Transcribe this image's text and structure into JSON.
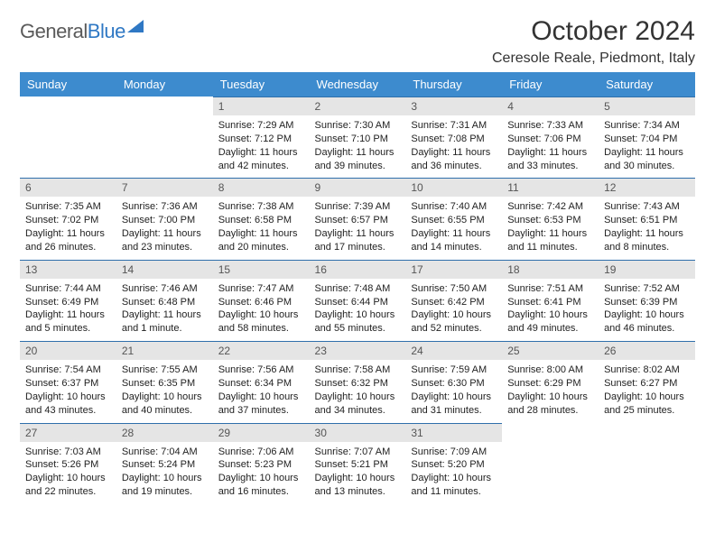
{
  "logo": {
    "text_gray": "General",
    "text_blue": "Blue"
  },
  "header": {
    "month_title": "October 2024",
    "location": "Ceresole Reale, Piedmont, Italy"
  },
  "colors": {
    "header_bg": "#3d8bce",
    "header_text": "#ffffff",
    "daynum_bg": "#e5e5e5",
    "daynum_border": "#2f6fab",
    "logo_gray": "#5a5a5a",
    "logo_blue": "#2f78c4",
    "body_text": "#222222",
    "page_bg": "#ffffff"
  },
  "weekdays": [
    "Sunday",
    "Monday",
    "Tuesday",
    "Wednesday",
    "Thursday",
    "Friday",
    "Saturday"
  ],
  "weeks": [
    [
      {
        "day": "",
        "sunrise": "",
        "sunset": "",
        "daylight": ""
      },
      {
        "day": "",
        "sunrise": "",
        "sunset": "",
        "daylight": ""
      },
      {
        "day": "1",
        "sunrise": "Sunrise: 7:29 AM",
        "sunset": "Sunset: 7:12 PM",
        "daylight": "Daylight: 11 hours and 42 minutes."
      },
      {
        "day": "2",
        "sunrise": "Sunrise: 7:30 AM",
        "sunset": "Sunset: 7:10 PM",
        "daylight": "Daylight: 11 hours and 39 minutes."
      },
      {
        "day": "3",
        "sunrise": "Sunrise: 7:31 AM",
        "sunset": "Sunset: 7:08 PM",
        "daylight": "Daylight: 11 hours and 36 minutes."
      },
      {
        "day": "4",
        "sunrise": "Sunrise: 7:33 AM",
        "sunset": "Sunset: 7:06 PM",
        "daylight": "Daylight: 11 hours and 33 minutes."
      },
      {
        "day": "5",
        "sunrise": "Sunrise: 7:34 AM",
        "sunset": "Sunset: 7:04 PM",
        "daylight": "Daylight: 11 hours and 30 minutes."
      }
    ],
    [
      {
        "day": "6",
        "sunrise": "Sunrise: 7:35 AM",
        "sunset": "Sunset: 7:02 PM",
        "daylight": "Daylight: 11 hours and 26 minutes."
      },
      {
        "day": "7",
        "sunrise": "Sunrise: 7:36 AM",
        "sunset": "Sunset: 7:00 PM",
        "daylight": "Daylight: 11 hours and 23 minutes."
      },
      {
        "day": "8",
        "sunrise": "Sunrise: 7:38 AM",
        "sunset": "Sunset: 6:58 PM",
        "daylight": "Daylight: 11 hours and 20 minutes."
      },
      {
        "day": "9",
        "sunrise": "Sunrise: 7:39 AM",
        "sunset": "Sunset: 6:57 PM",
        "daylight": "Daylight: 11 hours and 17 minutes."
      },
      {
        "day": "10",
        "sunrise": "Sunrise: 7:40 AM",
        "sunset": "Sunset: 6:55 PM",
        "daylight": "Daylight: 11 hours and 14 minutes."
      },
      {
        "day": "11",
        "sunrise": "Sunrise: 7:42 AM",
        "sunset": "Sunset: 6:53 PM",
        "daylight": "Daylight: 11 hours and 11 minutes."
      },
      {
        "day": "12",
        "sunrise": "Sunrise: 7:43 AM",
        "sunset": "Sunset: 6:51 PM",
        "daylight": "Daylight: 11 hours and 8 minutes."
      }
    ],
    [
      {
        "day": "13",
        "sunrise": "Sunrise: 7:44 AM",
        "sunset": "Sunset: 6:49 PM",
        "daylight": "Daylight: 11 hours and 5 minutes."
      },
      {
        "day": "14",
        "sunrise": "Sunrise: 7:46 AM",
        "sunset": "Sunset: 6:48 PM",
        "daylight": "Daylight: 11 hours and 1 minute."
      },
      {
        "day": "15",
        "sunrise": "Sunrise: 7:47 AM",
        "sunset": "Sunset: 6:46 PM",
        "daylight": "Daylight: 10 hours and 58 minutes."
      },
      {
        "day": "16",
        "sunrise": "Sunrise: 7:48 AM",
        "sunset": "Sunset: 6:44 PM",
        "daylight": "Daylight: 10 hours and 55 minutes."
      },
      {
        "day": "17",
        "sunrise": "Sunrise: 7:50 AM",
        "sunset": "Sunset: 6:42 PM",
        "daylight": "Daylight: 10 hours and 52 minutes."
      },
      {
        "day": "18",
        "sunrise": "Sunrise: 7:51 AM",
        "sunset": "Sunset: 6:41 PM",
        "daylight": "Daylight: 10 hours and 49 minutes."
      },
      {
        "day": "19",
        "sunrise": "Sunrise: 7:52 AM",
        "sunset": "Sunset: 6:39 PM",
        "daylight": "Daylight: 10 hours and 46 minutes."
      }
    ],
    [
      {
        "day": "20",
        "sunrise": "Sunrise: 7:54 AM",
        "sunset": "Sunset: 6:37 PM",
        "daylight": "Daylight: 10 hours and 43 minutes."
      },
      {
        "day": "21",
        "sunrise": "Sunrise: 7:55 AM",
        "sunset": "Sunset: 6:35 PM",
        "daylight": "Daylight: 10 hours and 40 minutes."
      },
      {
        "day": "22",
        "sunrise": "Sunrise: 7:56 AM",
        "sunset": "Sunset: 6:34 PM",
        "daylight": "Daylight: 10 hours and 37 minutes."
      },
      {
        "day": "23",
        "sunrise": "Sunrise: 7:58 AM",
        "sunset": "Sunset: 6:32 PM",
        "daylight": "Daylight: 10 hours and 34 minutes."
      },
      {
        "day": "24",
        "sunrise": "Sunrise: 7:59 AM",
        "sunset": "Sunset: 6:30 PM",
        "daylight": "Daylight: 10 hours and 31 minutes."
      },
      {
        "day": "25",
        "sunrise": "Sunrise: 8:00 AM",
        "sunset": "Sunset: 6:29 PM",
        "daylight": "Daylight: 10 hours and 28 minutes."
      },
      {
        "day": "26",
        "sunrise": "Sunrise: 8:02 AM",
        "sunset": "Sunset: 6:27 PM",
        "daylight": "Daylight: 10 hours and 25 minutes."
      }
    ],
    [
      {
        "day": "27",
        "sunrise": "Sunrise: 7:03 AM",
        "sunset": "Sunset: 5:26 PM",
        "daylight": "Daylight: 10 hours and 22 minutes."
      },
      {
        "day": "28",
        "sunrise": "Sunrise: 7:04 AM",
        "sunset": "Sunset: 5:24 PM",
        "daylight": "Daylight: 10 hours and 19 minutes."
      },
      {
        "day": "29",
        "sunrise": "Sunrise: 7:06 AM",
        "sunset": "Sunset: 5:23 PM",
        "daylight": "Daylight: 10 hours and 16 minutes."
      },
      {
        "day": "30",
        "sunrise": "Sunrise: 7:07 AM",
        "sunset": "Sunset: 5:21 PM",
        "daylight": "Daylight: 10 hours and 13 minutes."
      },
      {
        "day": "31",
        "sunrise": "Sunrise: 7:09 AM",
        "sunset": "Sunset: 5:20 PM",
        "daylight": "Daylight: 10 hours and 11 minutes."
      },
      {
        "day": "",
        "sunrise": "",
        "sunset": "",
        "daylight": ""
      },
      {
        "day": "",
        "sunrise": "",
        "sunset": "",
        "daylight": ""
      }
    ]
  ]
}
